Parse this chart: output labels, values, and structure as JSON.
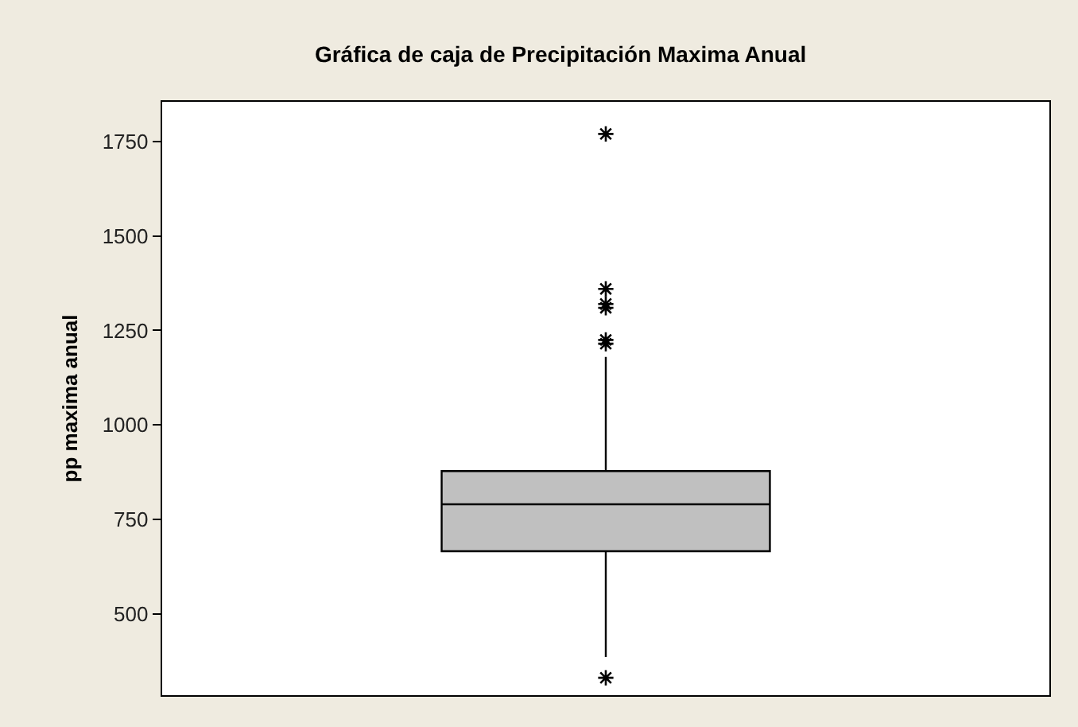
{
  "chart_data": {
    "type": "box",
    "title": "Gráfica de caja de Precipitación Maxima Anual",
    "ylabel": "pp maxima anual",
    "categories": [
      null
    ],
    "boxes": [
      {
        "low": 386,
        "q1": 666,
        "median": 790,
        "q3": 878,
        "high": 1180,
        "outliers": [
          331,
          1215,
          1225,
          1310,
          1320,
          1360,
          1770
        ]
      }
    ],
    "color": "#c0c0c0",
    "ylim": [
      285,
      1855
    ],
    "yticks": [
      500,
      750,
      1000,
      1250,
      1500,
      1750
    ],
    "tick_labels": "y",
    "marker": "star"
  }
}
